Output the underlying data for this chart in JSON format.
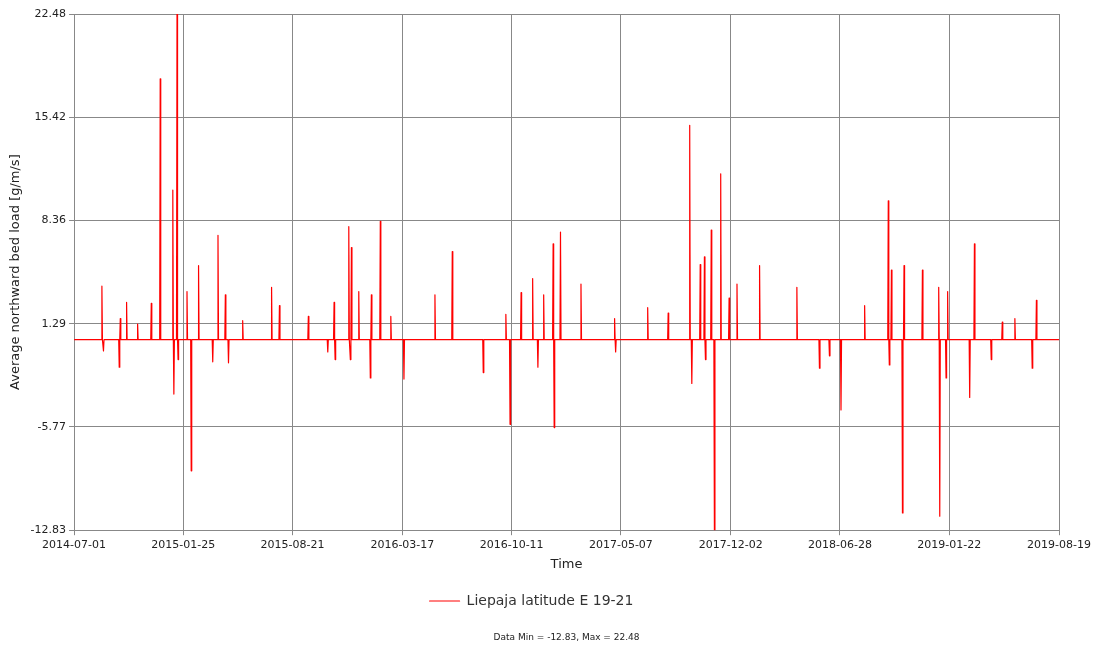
{
  "chart_data": {
    "type": "line",
    "xlabel": "Time",
    "ylabel": "Average northward bed load [g/m/s]",
    "annotations": [
      "Data Min = -12.83, Max = 22.48"
    ],
    "xlim": [
      "2014-07-01",
      "2019-08-19"
    ],
    "xticks": [
      "2014-07-01",
      "2015-01-25",
      "2015-08-21",
      "2016-03-17",
      "2016-10-11",
      "2017-05-07",
      "2017-12-02",
      "2018-06-28",
      "2019-01-22",
      "2019-08-19"
    ],
    "ylim": [
      -12.83,
      22.48
    ],
    "yticks": [
      -12.83,
      -5.77,
      1.29,
      8.36,
      15.42,
      22.48
    ],
    "grid": true,
    "legend": "bottom",
    "series": [
      {
        "name": "Liepaja latitude E 19-21",
        "color": "#ff0000",
        "x": [
          "2014-07-01",
          "2014-08-22",
          "2014-08-23",
          "2014-08-24",
          "2014-08-26",
          "2014-08-27",
          "2014-09-24",
          "2014-09-25",
          "2014-09-26",
          "2014-09-27",
          "2014-09-28",
          "2014-10-08",
          "2014-10-09",
          "2014-10-10",
          "2014-10-29",
          "2014-10-30",
          "2014-10-31",
          "2014-11-24",
          "2014-11-25",
          "2014-11-26",
          "2014-12-11",
          "2014-12-12",
          "2014-12-13",
          "2015-01-04",
          "2015-01-05",
          "2015-01-06",
          "2015-01-07",
          "2015-01-08",
          "2015-01-12",
          "2015-01-13",
          "2015-01-14",
          "2015-01-15",
          "2015-01-16",
          "2015-01-31",
          "2015-02-01",
          "2015-02-02",
          "2015-02-08",
          "2015-02-09",
          "2015-02-10",
          "2015-02-22",
          "2015-02-23",
          "2015-02-24",
          "2015-03-21",
          "2015-03-22",
          "2015-03-23",
          "2015-03-31",
          "2015-04-01",
          "2015-04-02",
          "2015-04-14",
          "2015-04-15",
          "2015-04-16",
          "2015-04-20",
          "2015-04-21",
          "2015-04-22",
          "2015-05-17",
          "2015-05-18",
          "2015-05-19",
          "2015-07-11",
          "2015-07-12",
          "2015-07-13",
          "2015-07-26",
          "2015-07-27",
          "2015-07-28",
          "2015-09-19",
          "2015-09-20",
          "2015-09-21",
          "2015-10-26",
          "2015-10-27",
          "2015-10-28",
          "2015-11-07",
          "2015-11-08",
          "2015-11-09",
          "2015-11-10",
          "2015-11-11",
          "2015-12-05",
          "2015-12-06",
          "2015-12-07",
          "2015-12-09",
          "2015-12-10",
          "2015-12-11",
          "2015-12-12",
          "2015-12-24",
          "2015-12-25",
          "2015-12-26",
          "2016-01-15",
          "2016-01-16",
          "2016-01-17",
          "2016-01-18",
          "2016-01-19",
          "2016-02-03",
          "2016-02-04",
          "2016-02-05",
          "2016-02-23",
          "2016-02-24",
          "2016-02-25",
          "2016-03-19",
          "2016-03-20",
          "2016-03-21",
          "2016-05-17",
          "2016-05-18",
          "2016-05-19",
          "2016-06-19",
          "2016-06-20",
          "2016-06-21",
          "2016-08-17",
          "2016-08-18",
          "2016-08-19",
          "2016-09-29",
          "2016-09-30",
          "2016-10-01",
          "2016-10-07",
          "2016-10-08",
          "2016-10-09",
          "2016-10-28",
          "2016-10-29",
          "2016-10-30",
          "2016-11-19",
          "2016-11-20",
          "2016-11-21",
          "2016-11-29",
          "2016-11-30",
          "2016-12-01",
          "2016-12-10",
          "2016-12-11",
          "2016-12-12",
          "2016-12-28",
          "2016-12-29",
          "2016-12-30",
          "2016-12-31",
          "2017-01-01",
          "2017-01-11",
          "2017-01-12",
          "2017-01-13",
          "2017-02-19",
          "2017-02-20",
          "2017-02-21",
          "2017-04-24",
          "2017-04-25",
          "2017-04-26",
          "2017-04-27",
          "2017-04-28",
          "2017-06-26",
          "2017-06-27",
          "2017-06-28",
          "2017-08-04",
          "2017-08-05",
          "2017-08-06",
          "2017-09-14",
          "2017-09-15",
          "2017-09-16",
          "2017-09-18",
          "2017-09-19",
          "2017-09-20",
          "2017-10-04",
          "2017-10-05",
          "2017-10-06",
          "2017-10-12",
          "2017-10-13",
          "2017-10-14",
          "2017-10-15",
          "2017-10-16",
          "2017-10-25",
          "2017-10-26",
          "2017-10-27",
          "2017-10-31",
          "2017-11-01",
          "2017-11-02",
          "2017-11-12",
          "2017-11-13",
          "2017-11-14",
          "2017-11-28",
          "2017-11-29",
          "2017-11-30",
          "2017-12-13",
          "2017-12-14",
          "2017-12-15",
          "2018-01-25",
          "2018-01-26",
          "2018-01-27",
          "2018-04-06",
          "2018-04-07",
          "2018-04-08",
          "2018-05-19",
          "2018-05-20",
          "2018-05-21",
          "2018-06-07",
          "2018-06-08",
          "2018-06-09",
          "2018-06-29",
          "2018-06-30",
          "2018-07-01",
          "2018-08-13",
          "2018-08-14",
          "2018-08-15",
          "2018-09-27",
          "2018-09-28",
          "2018-09-29",
          "2018-09-30",
          "2018-10-01",
          "2018-10-03",
          "2018-10-04",
          "2018-10-05",
          "2018-10-24",
          "2018-10-25",
          "2018-10-26",
          "2018-10-27",
          "2018-10-28",
          "2018-10-29",
          "2018-12-01",
          "2018-12-02",
          "2018-12-03",
          "2019-01-01",
          "2019-01-02",
          "2019-01-03",
          "2019-01-04",
          "2019-01-05",
          "2019-01-15",
          "2019-01-16",
          "2019-01-17",
          "2019-01-18",
          "2019-01-19",
          "2019-01-20",
          "2019-03-01",
          "2019-03-02",
          "2019-03-03",
          "2019-03-10",
          "2019-03-11",
          "2019-03-12",
          "2019-04-11",
          "2019-04-12",
          "2019-04-13",
          "2019-05-02",
          "2019-05-03",
          "2019-05-04",
          "2019-05-26",
          "2019-05-27",
          "2019-05-28",
          "2019-06-28",
          "2019-06-29",
          "2019-06-30",
          "2019-07-06",
          "2019-07-07",
          "2019-07-08",
          "2019-08-19"
        ],
        "values": [
          0.2,
          0.2,
          3.86,
          0.2,
          -0.57,
          0.2,
          0.2,
          -1.68,
          0.2,
          1.65,
          0.2,
          0.2,
          2.75,
          0.2,
          0.2,
          1.27,
          0.2,
          0.2,
          2.68,
          0.2,
          0.2,
          18.05,
          0.2,
          0.2,
          10.44,
          0.2,
          -3.52,
          0.2,
          0.2,
          22.48,
          0.2,
          -1.16,
          0.2,
          0.2,
          3.49,
          0.2,
          0.2,
          -8.77,
          0.2,
          0.2,
          5.27,
          0.2,
          0.2,
          -1.31,
          0.2,
          0.2,
          7.34,
          0.2,
          0.2,
          3.27,
          0.2,
          0.2,
          -1.38,
          0.2,
          0.2,
          1.5,
          0.2,
          0.2,
          3.79,
          0.2,
          0.2,
          2.53,
          0.2,
          0.2,
          1.79,
          0.2,
          0.2,
          -0.64,
          0.2,
          0.2,
          2.75,
          0.2,
          -1.16,
          0.2,
          0.2,
          7.93,
          0.2,
          -1.16,
          0.2,
          6.5,
          0.2,
          0.2,
          3.49,
          0.2,
          0.2,
          -2.42,
          0.2,
          3.27,
          0.2,
          0.2,
          8.3,
          0.2,
          0.2,
          1.79,
          0.2,
          0.2,
          -2.49,
          0.2,
          0.2,
          3.27,
          0.2,
          0.2,
          6.23,
          0.2,
          0.2,
          -2.05,
          0.2,
          0.2,
          1.94,
          0.2,
          0.2,
          -5.59,
          0.2,
          0.2,
          3.42,
          0.2,
          0.2,
          4.38,
          0.2,
          0.2,
          -1.68,
          0.2,
          0.2,
          3.27,
          0.2,
          0.2,
          6.75,
          0.2,
          -5.81,
          0.2,
          0.2,
          7.56,
          0.2,
          0.2,
          4.01,
          0.2,
          0.2,
          1.65,
          0.2,
          -0.64,
          0.2,
          0.2,
          2.39,
          0.2,
          0.2,
          2.02,
          0.2,
          0.2,
          14.87,
          0.2,
          0.2,
          -2.79,
          0.2,
          0.2,
          5.34,
          0.2,
          0.2,
          5.86,
          0.2,
          -1.16,
          0.2,
          0.2,
          7.7,
          0.2,
          0.2,
          -12.83,
          0.2,
          0.2,
          11.55,
          0.2,
          0.2,
          3.05,
          0.2,
          0.2,
          4.01,
          0.2,
          0.2,
          5.27,
          0.2,
          0.2,
          3.79,
          0.2,
          0.2,
          -1.75,
          0.2,
          0.2,
          -0.9,
          0.2,
          0.2,
          -4.6,
          0.2,
          0.2,
          2.53,
          0.2,
          0.2,
          9.7,
          0.2,
          -1.53,
          0.2,
          0.2,
          4.97,
          0.2,
          0.2,
          -11.65,
          0.2,
          0.2,
          5.27,
          0.2,
          0.2,
          4.97,
          0.2,
          0.2,
          3.79,
          0.2,
          -11.87,
          0.2,
          0.2,
          -2.42,
          0.2,
          0.2,
          3.49,
          0.2,
          0.2,
          -3.75,
          0.2,
          0.2,
          6.75,
          0.2,
          0.2,
          -1.16,
          0.2,
          0.2,
          1.4,
          0.2,
          0.2,
          1.65,
          0.2,
          0.2,
          -1.75,
          0.2,
          0.2,
          2.9,
          0.2,
          0.2
        ]
      }
    ]
  }
}
